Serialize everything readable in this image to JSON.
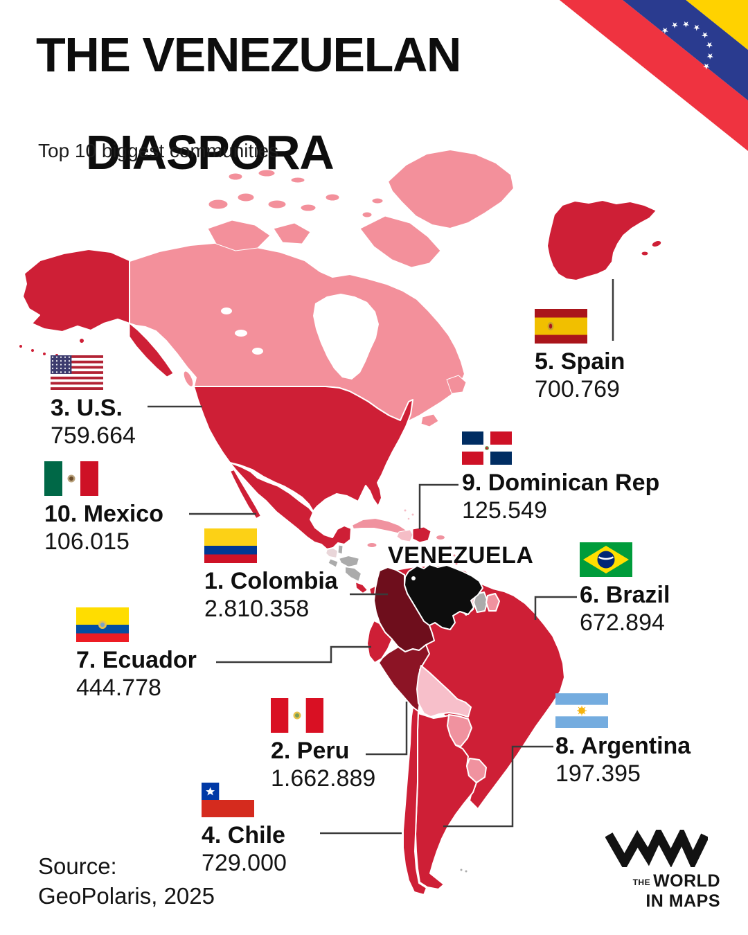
{
  "title": {
    "line1": "THE VENEZUELAN",
    "line2": "DIASPORA",
    "subtitle": "Top 10 biggest communities"
  },
  "map_label": "VENEZUELA",
  "communities": [
    {
      "rank": "1",
      "label": "1. Colombia",
      "value": "2.810.358",
      "flag": "colombia-flag"
    },
    {
      "rank": "2",
      "label": "2. Peru",
      "value": "1.662.889",
      "flag": "peru-flag"
    },
    {
      "rank": "3",
      "label": "3. U.S.",
      "value": "759.664",
      "flag": "us-flag"
    },
    {
      "rank": "4",
      "label": "4. Chile",
      "value": "729.000",
      "flag": "chile-flag"
    },
    {
      "rank": "5",
      "label": "5. Spain",
      "value": "700.769",
      "flag": "spain-flag"
    },
    {
      "rank": "6",
      "label": "6. Brazil",
      "value": "672.894",
      "flag": "brazil-flag"
    },
    {
      "rank": "7",
      "label": "7. Ecuador",
      "value": "444.778",
      "flag": "ecuador-flag"
    },
    {
      "rank": "8",
      "label": "8. Argentina",
      "value": "197.395",
      "flag": "argentina-flag"
    },
    {
      "rank": "9",
      "label": "9. Dominican Rep",
      "value": "125.549",
      "flag": "dominican-republic-flag"
    },
    {
      "rank": "10",
      "label": "10. Mexico",
      "value": "106.015",
      "flag": "mexico-flag"
    }
  ],
  "source": {
    "label": "Source:",
    "value": "GeoPolaris, 2025"
  },
  "logo": {
    "prefix": "THE",
    "line1": "WORLD",
    "line2": "IN MAPS"
  },
  "flag_ribbon": {
    "stars": 8,
    "colors": {
      "yellow": "#FFD200",
      "blue": "#2A3B8F",
      "red": "#EF3340"
    }
  },
  "map_colors": {
    "highlight": "#CE1F36",
    "non_top10": "#F3909B",
    "secondary_pink": "#F0929F",
    "light_pink": "#F5BDC6",
    "bolivia": "#F7BFCA",
    "neutral_gray": "#ABABAB",
    "pale": "#E9D6D9",
    "venezuela": "#0D0D0D",
    "colombia": "#6E0E1C",
    "peru": "#8C1425"
  }
}
